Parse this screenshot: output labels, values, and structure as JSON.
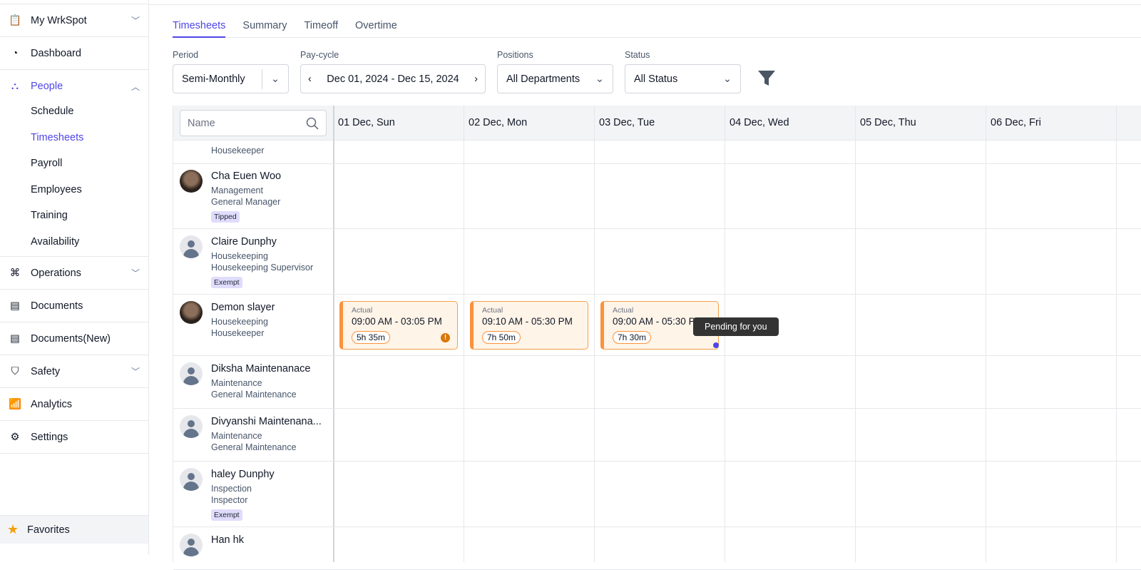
{
  "sidebar": {
    "items": [
      {
        "label": "My WrkSpot",
        "icon": "clipboard-icon",
        "chevron": "down"
      },
      {
        "label": "Dashboard",
        "icon": "pie-chart-icon"
      },
      {
        "label": "People",
        "icon": "people-icon",
        "chevron": "up",
        "active": true,
        "subitems": [
          "Schedule",
          "Timesheets",
          "Payroll",
          "Employees",
          "Training",
          "Availability"
        ],
        "active_sub": "Timesheets"
      },
      {
        "label": "Operations",
        "icon": "operations-icon",
        "chevron": "down"
      },
      {
        "label": "Documents",
        "icon": "document-icon"
      },
      {
        "label": "Documents(New)",
        "icon": "document-icon"
      },
      {
        "label": "Safety",
        "icon": "shield-icon",
        "chevron": "down"
      },
      {
        "label": "Analytics",
        "icon": "analytics-icon"
      },
      {
        "label": "Settings",
        "icon": "gear-icon"
      }
    ],
    "favorites": "Favorites"
  },
  "tabs": [
    "Timesheets",
    "Summary",
    "Timeoff",
    "Overtime"
  ],
  "active_tab": "Timesheets",
  "filters": {
    "period_label": "Period",
    "period": "Semi-Monthly",
    "paycycle_label": "Pay-cycle",
    "paycycle": "Dec 01, 2024 - Dec 15, 2024",
    "positions_label": "Positions",
    "positions": "All Departments",
    "status_label": "Status",
    "status": "All Status"
  },
  "grid": {
    "name_placeholder": "Name",
    "days": [
      "01 Dec, Sun",
      "02 Dec, Mon",
      "03 Dec, Tue",
      "04 Dec, Wed",
      "05 Dec, Thu",
      "06 Dec, Fri"
    ],
    "partial_row": {
      "role": "Housekeeper"
    },
    "employees": [
      {
        "name": "Cha Euen Woo",
        "dept": "Management",
        "role": "General Manager",
        "badge": "Tipped",
        "photo": true
      },
      {
        "name": "Claire Dunphy",
        "dept": "Housekeeping",
        "role": "Housekeeping Supervisor",
        "badge": "Exempt"
      },
      {
        "name": "Demon slayer",
        "dept": "Housekeeping",
        "role": "Housekeeper",
        "photo": true
      },
      {
        "name": "Diksha Maintenanace",
        "dept": "Maintenance",
        "role": "General Maintenance"
      },
      {
        "name": "Divyanshi Maintenana...",
        "dept": "Maintenance",
        "role": "General Maintenance"
      },
      {
        "name": "haley Dunphy",
        "dept": "Inspection",
        "role": "Inspector",
        "badge": "Exempt"
      },
      {
        "name": "Han hk",
        "dept": "",
        "role": ""
      }
    ],
    "shifts": [
      {
        "label": "Actual",
        "time": "09:00 AM - 03:05 PM",
        "hours": "5h 35m",
        "warning": true
      },
      {
        "label": "Actual",
        "time": "09:10 AM - 05:30 PM",
        "hours": "7h 50m"
      },
      {
        "label": "Actual",
        "time": "09:00 AM - 05:30 PM",
        "hours": "7h 30m",
        "pending": true
      }
    ],
    "tooltip": "Pending for you"
  },
  "colors": {
    "accent": "#4f46e5",
    "shift_border": "#fb923c",
    "shift_bg": "#fff4e8"
  }
}
